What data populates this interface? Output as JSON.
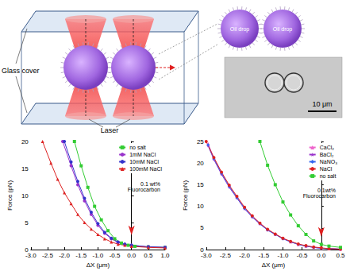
{
  "diagram": {
    "glass_cover_label": "Glass cover",
    "laser_label": "Laser",
    "oil_drop_labels": [
      "Oil drop",
      "Oil drop"
    ],
    "scale_bar_label": "10 μm"
  },
  "chart_data": [
    {
      "type": "line",
      "xlabel": "ΔX (μm)",
      "ylabel": "Force (pN)",
      "annotation": "0.1 wt% Fluorocarbon",
      "arrow": {
        "x": 0,
        "y": 1.5
      },
      "legend": "upper right",
      "xlim": [
        -3,
        1
      ],
      "xticks": [
        {
          "value": -3,
          "label": "-3.0"
        },
        {
          "value": -2.5,
          "label": "-2.5"
        },
        {
          "value": -2,
          "label": "-2.0"
        },
        {
          "value": -1.5,
          "label": "-1.5"
        },
        {
          "value": -1,
          "label": "-1.0"
        },
        {
          "value": -0.5,
          "label": "-0.5"
        },
        {
          "value": 0,
          "label": "0.0"
        },
        {
          "value": 0.5,
          "label": "0.5"
        },
        {
          "value": 1,
          "label": "1.0"
        }
      ],
      "ylim": [
        0,
        20
      ],
      "yticks": [
        0,
        5,
        10,
        15,
        20
      ],
      "series": [
        {
          "name": "no salt",
          "color": "#33cc33",
          "marker": "square",
          "x": [
            -1.7,
            -1.5,
            -1.3,
            -1.1,
            -0.9,
            -0.7,
            -0.5,
            -0.3,
            -0.1,
            0.1,
            0.5,
            1.0
          ],
          "values": [
            20,
            15.5,
            11.5,
            8,
            5.5,
            3.5,
            2,
            1.2,
            0.8,
            0.6,
            0.5,
            0.4
          ]
        },
        {
          "name": "1mM NaCl",
          "color": "#9933cc",
          "marker": "circle",
          "x": [
            -2.05,
            -1.8,
            -1.6,
            -1.4,
            -1.2,
            -1.0,
            -0.8,
            -0.6,
            -0.4,
            -0.2,
            0,
            0.5,
            1.0
          ],
          "values": [
            20,
            15.5,
            12,
            9,
            6.5,
            4.5,
            3,
            2,
            1.3,
            1,
            0.8,
            0.5,
            0.4
          ]
        },
        {
          "name": "10mM NaCl",
          "color": "#3333cc",
          "marker": "circle",
          "x": [
            -2.0,
            -1.8,
            -1.6,
            -1.4,
            -1.2,
            -1.0,
            -0.8,
            -0.6,
            -0.4,
            -0.2,
            0,
            0.5,
            1.0
          ],
          "values": [
            20,
            16.2,
            12.6,
            9.5,
            6.9,
            4.8,
            3.2,
            2.1,
            1.4,
            1,
            0.8,
            0.5,
            0.4
          ]
        },
        {
          "name": "100mM NaCl",
          "color": "#dd2222",
          "marker": "triangle",
          "x": [
            -2.65,
            -2.4,
            -2.2,
            -2.0,
            -1.8,
            -1.6,
            -1.4,
            -1.2,
            -1.0,
            -0.8,
            -0.6,
            -0.4,
            -0.2,
            0,
            0.5,
            1.0
          ],
          "values": [
            20,
            16,
            13,
            10.5,
            8.5,
            6.5,
            5,
            3.8,
            2.8,
            2,
            1.4,
            1,
            0.8,
            0.6,
            0.4,
            0.3
          ]
        }
      ]
    },
    {
      "type": "line",
      "xlabel": "ΔX (μm)",
      "ylabel": "Force (pN)",
      "annotation": "0.1wt% Fluorocarbon",
      "arrow": {
        "x": 0,
        "y": 1.5
      },
      "legend": "upper right",
      "xlim": [
        -3,
        0.5
      ],
      "xticks": [
        {
          "value": -3,
          "label": "-3.0"
        },
        {
          "value": -2.5,
          "label": "-2.5"
        },
        {
          "value": -2,
          "label": "-2.0"
        },
        {
          "value": -1.5,
          "label": "-1.5"
        },
        {
          "value": -1,
          "label": "-1.0"
        },
        {
          "value": -0.5,
          "label": "-0.5"
        },
        {
          "value": 0,
          "label": "0.0"
        },
        {
          "value": 0.5,
          "label": "0.5"
        }
      ],
      "ylim": [
        0,
        25
      ],
      "yticks": [
        0,
        5,
        10,
        15,
        20,
        25
      ],
      "series": [
        {
          "name": "CaCl₂",
          "color": "#ee66cc",
          "marker": "triangle",
          "x": [
            -2.95,
            -2.8,
            -2.6,
            -2.4,
            -2.2,
            -2.0,
            -1.8,
            -1.6,
            -1.4,
            -1.2,
            -1.0,
            -0.8,
            -0.6,
            -0.4,
            -0.2,
            0,
            0.2,
            0.5
          ],
          "values": [
            24.5,
            21.2,
            17.8,
            14.8,
            12.2,
            9.7,
            7.7,
            6.1,
            4.6,
            3.6,
            2.6,
            1.8,
            1.2,
            0.8,
            0.5,
            0.3,
            0.2,
            0.1
          ]
        },
        {
          "name": "BaCl₂",
          "color": "#9933cc",
          "marker": "star",
          "x": [
            -2.95,
            -2.8,
            -2.6,
            -2.4,
            -2.2,
            -2.0,
            -1.8,
            -1.6,
            -1.4,
            -1.2,
            -1.0,
            -0.8,
            -0.6,
            -0.4,
            -0.2,
            0,
            0.2,
            0.5
          ],
          "values": [
            24,
            20.8,
            17.4,
            14.4,
            11.9,
            9.4,
            7.5,
            5.9,
            4.5,
            3.5,
            2.5,
            1.8,
            1.2,
            0.8,
            0.5,
            0.3,
            0.2,
            0.1
          ]
        },
        {
          "name": "NaNO₃",
          "color": "#3366ee",
          "marker": "diamond",
          "x": [
            -2.95,
            -2.8,
            -2.6,
            -2.4,
            -2.2,
            -2.0,
            -1.8,
            -1.6,
            -1.4,
            -1.2,
            -1.0,
            -0.8,
            -0.6,
            -0.4,
            -0.2,
            0,
            0.2,
            0.5
          ],
          "values": [
            24.2,
            21,
            17.6,
            14.6,
            12,
            9.5,
            7.6,
            6,
            4.5,
            3.5,
            2.5,
            1.8,
            1.2,
            0.8,
            0.5,
            0.3,
            0.2,
            0.1
          ]
        },
        {
          "name": "NaCl",
          "color": "#dd2222",
          "marker": "circle",
          "x": [
            -3.0,
            -2.8,
            -2.6,
            -2.4,
            -2.2,
            -2.0,
            -1.8,
            -1.6,
            -1.4,
            -1.2,
            -1.0,
            -0.8,
            -0.6,
            -0.4,
            -0.2,
            0,
            0.2,
            0.5
          ],
          "values": [
            25,
            21.3,
            17.9,
            14.9,
            12.3,
            9.8,
            7.8,
            6.1,
            4.7,
            3.6,
            2.6,
            1.9,
            1.3,
            0.9,
            0.6,
            0.4,
            0.2,
            0.1
          ]
        },
        {
          "name": "no salt",
          "color": "#33cc33",
          "marker": "square",
          "x": [
            -1.6,
            -1.4,
            -1.2,
            -1.0,
            -0.8,
            -0.6,
            -0.4,
            -0.2,
            0,
            0.2,
            0.5
          ],
          "values": [
            25,
            19.5,
            15,
            11,
            8,
            5.5,
            3.5,
            2,
            1.2,
            0.8,
            0.5
          ]
        }
      ]
    }
  ]
}
